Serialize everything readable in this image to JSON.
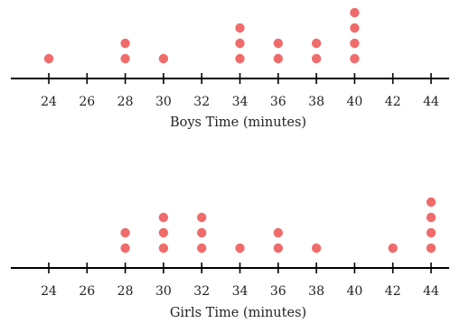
{
  "chart_data": [
    {
      "type": "dot-plot",
      "xlabel": "Boys Time (minutes)",
      "ticks": [
        24,
        26,
        28,
        30,
        32,
        34,
        36,
        38,
        40,
        42,
        44
      ],
      "xlim": [
        24,
        44
      ],
      "marker_color": "#f06b6b",
      "counts": [
        {
          "x": 24,
          "count": 1
        },
        {
          "x": 28,
          "count": 2
        },
        {
          "x": 30,
          "count": 1
        },
        {
          "x": 34,
          "count": 3
        },
        {
          "x": 36,
          "count": 2
        },
        {
          "x": 38,
          "count": 2
        },
        {
          "x": 40,
          "count": 4
        }
      ]
    },
    {
      "type": "dot-plot",
      "xlabel": "Girls Time (minutes)",
      "ticks": [
        24,
        26,
        28,
        30,
        32,
        34,
        36,
        38,
        40,
        42,
        44
      ],
      "xlim": [
        24,
        44
      ],
      "marker_color": "#f06b6b",
      "counts": [
        {
          "x": 28,
          "count": 2
        },
        {
          "x": 30,
          "count": 3
        },
        {
          "x": 32,
          "count": 3
        },
        {
          "x": 34,
          "count": 1
        },
        {
          "x": 36,
          "count": 2
        },
        {
          "x": 38,
          "count": 1
        },
        {
          "x": 42,
          "count": 1
        },
        {
          "x": 44,
          "count": 4
        }
      ]
    }
  ]
}
